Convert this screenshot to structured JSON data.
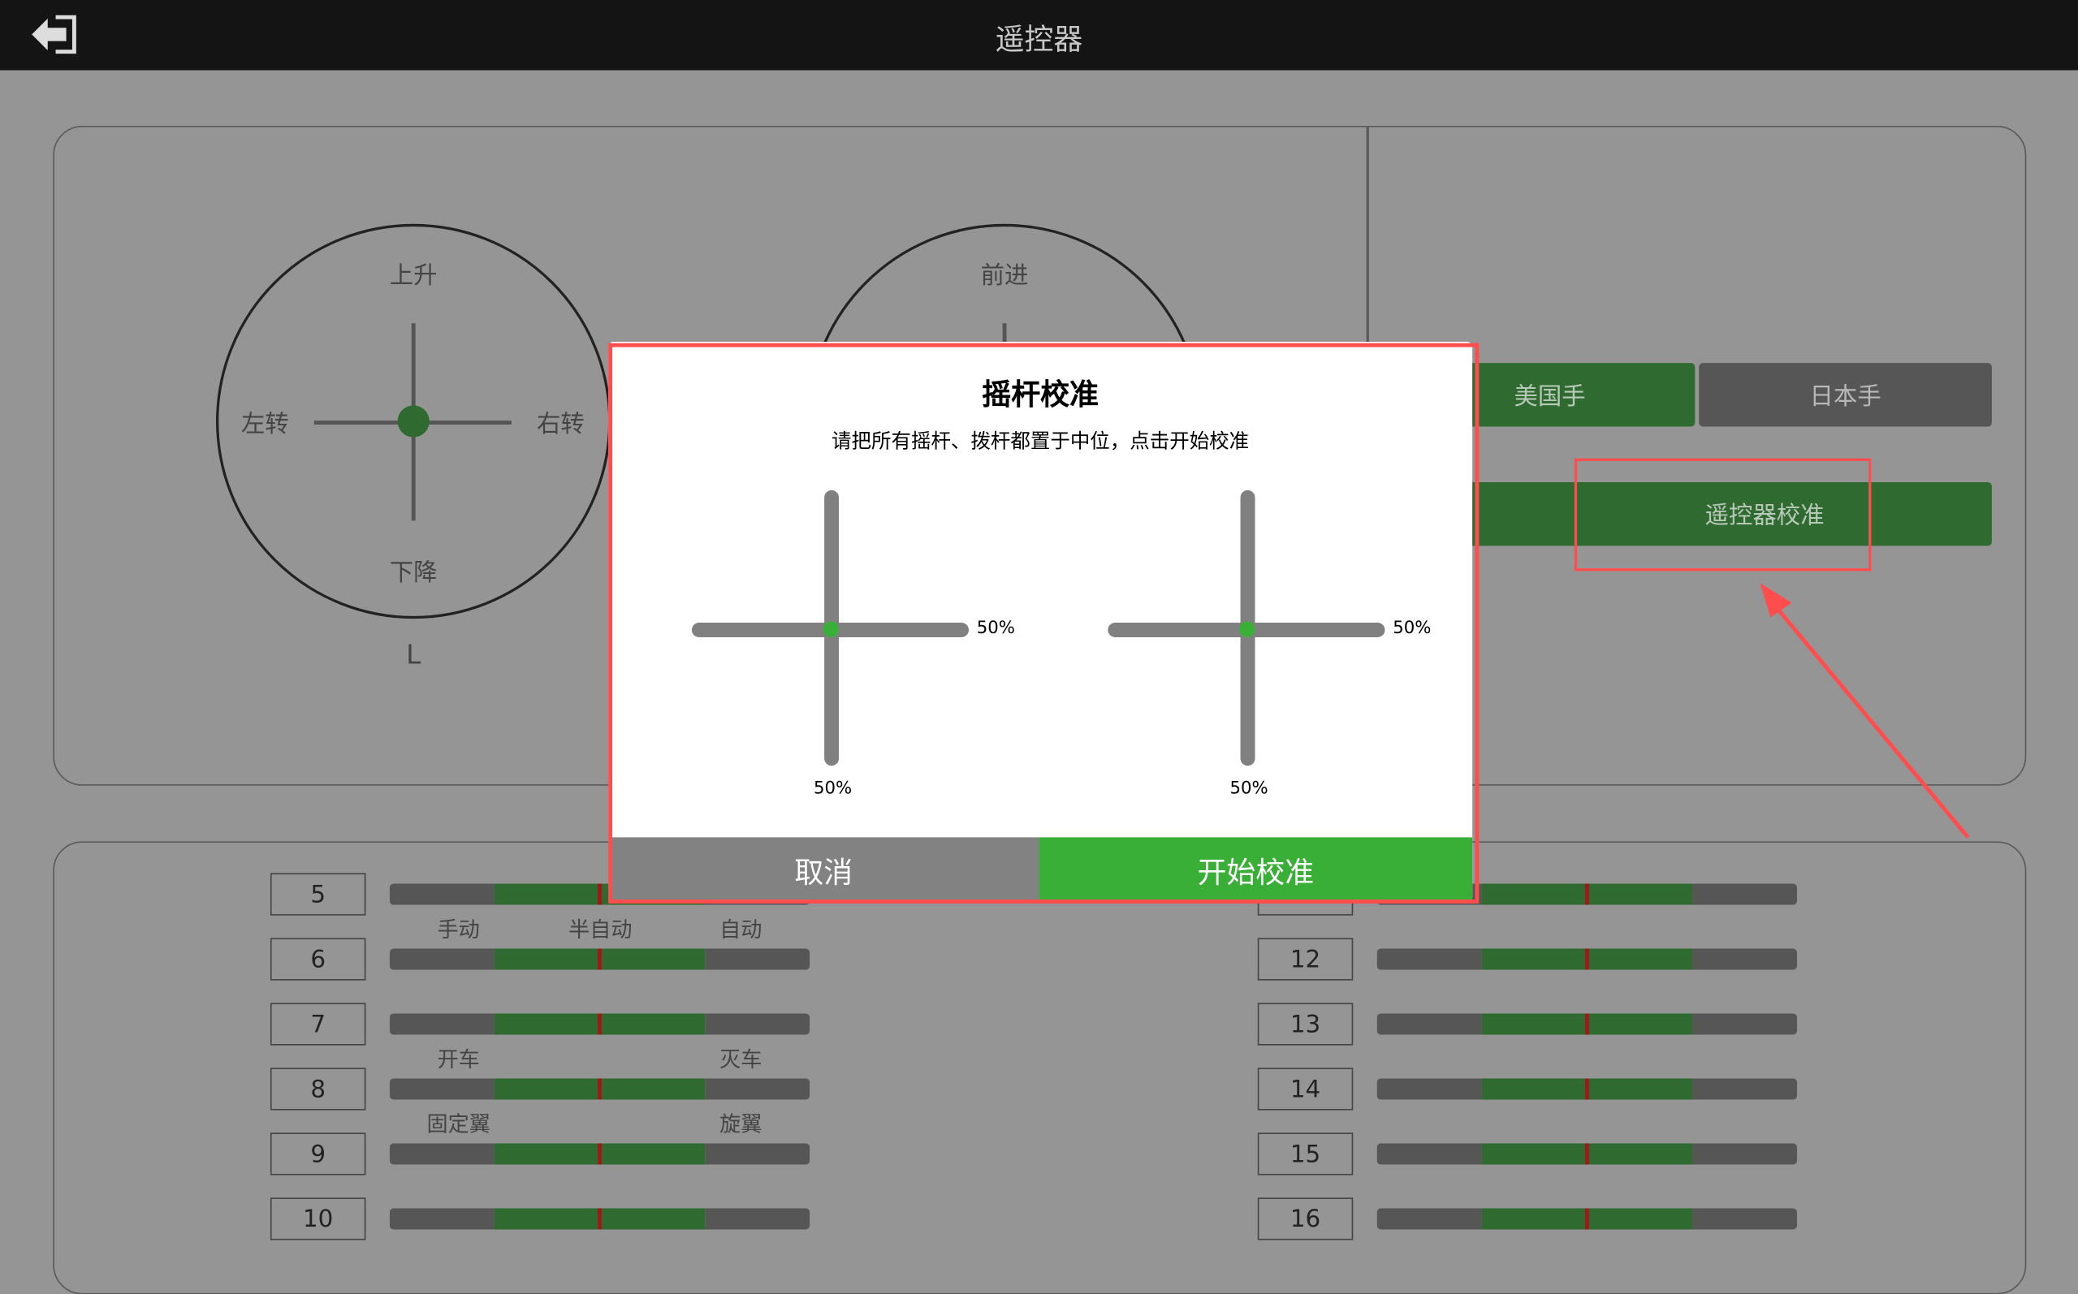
{
  "header": {
    "title": "遥控器",
    "back_icon": "exit-arrow-icon"
  },
  "left_stick": {
    "up": "上升",
    "down": "下降",
    "left": "左转",
    "right": "右转",
    "label": "L"
  },
  "right_stick": {
    "up": "前进"
  },
  "mode": {
    "usa": "美国手",
    "japan": "日本手",
    "calibrate": "遥控器校准",
    "active": "usa"
  },
  "channels_left": [
    {
      "num": "5"
    },
    {
      "num": "6"
    },
    {
      "num": "7"
    },
    {
      "num": "8"
    },
    {
      "num": "9"
    },
    {
      "num": "10"
    }
  ],
  "channels_right": [
    {
      "num": "12"
    },
    {
      "num": "13"
    },
    {
      "num": "14"
    },
    {
      "num": "15"
    },
    {
      "num": "16"
    }
  ],
  "channel_labels": {
    "ch6": [
      "手动",
      "半自动",
      "自动"
    ],
    "ch8": [
      "开车",
      "灭车"
    ],
    "ch9": [
      "固定翼",
      "旋翼"
    ]
  },
  "dialog": {
    "title": "摇杆校准",
    "message": "请把所有摇杆、拨杆都置于中位，点击开始校准",
    "left_h": "50%",
    "left_v": "50%",
    "right_h": "50%",
    "right_v": "50%",
    "cancel": "取消",
    "start": "开始校准"
  },
  "colors": {
    "accent_green": "#3aaf38",
    "dark_green": "#2f6b30",
    "annotation_red": "#ff4d4d"
  }
}
